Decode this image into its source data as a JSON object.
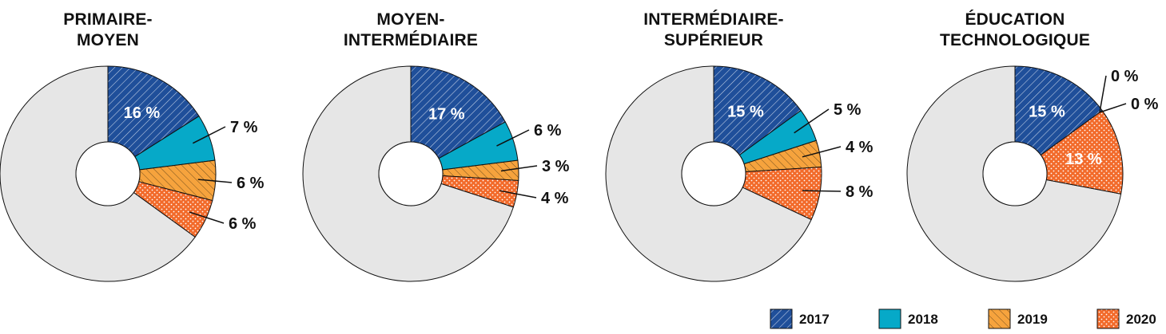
{
  "chart_data": {
    "type": "pie",
    "legend": {
      "placement": "bottom-right",
      "series": [
        {
          "name": "2017",
          "color": "#1f4f9a",
          "pattern": "diagonal-hatch"
        },
        {
          "name": "2018",
          "color": "#06a9c8",
          "pattern": "solid"
        },
        {
          "name": "2019",
          "color": "#f6a33d",
          "pattern": "reverse-hatch"
        },
        {
          "name": "2020",
          "color": "#f26a2a",
          "pattern": "dots"
        }
      ]
    },
    "remainder_color": "#e6e6e6",
    "charts": [
      {
        "title_lines": [
          "PRIMAIRE-",
          "MOYEN"
        ],
        "values": [
          16,
          7,
          6,
          6
        ],
        "labels": [
          "16 %",
          "7 %",
          "6 %",
          "6 %"
        ]
      },
      {
        "title_lines": [
          "MOYEN-",
          "INTERMÉDIAIRE"
        ],
        "values": [
          17,
          6,
          3,
          4
        ],
        "labels": [
          "17 %",
          "6 %",
          "3 %",
          "4 %"
        ]
      },
      {
        "title_lines": [
          "INTERMÉDIAIRE-",
          "SUPÉRIEUR"
        ],
        "values": [
          15,
          5,
          4,
          8
        ],
        "labels": [
          "15 %",
          "5 %",
          "4 %",
          "8 %"
        ]
      },
      {
        "title_lines": [
          "ÉDUCATION",
          "TECHNOLOGIQUE"
        ],
        "values": [
          15,
          0,
          0,
          13
        ],
        "labels": [
          "15 %",
          "0 %",
          "0 %",
          "13 %"
        ]
      }
    ]
  }
}
